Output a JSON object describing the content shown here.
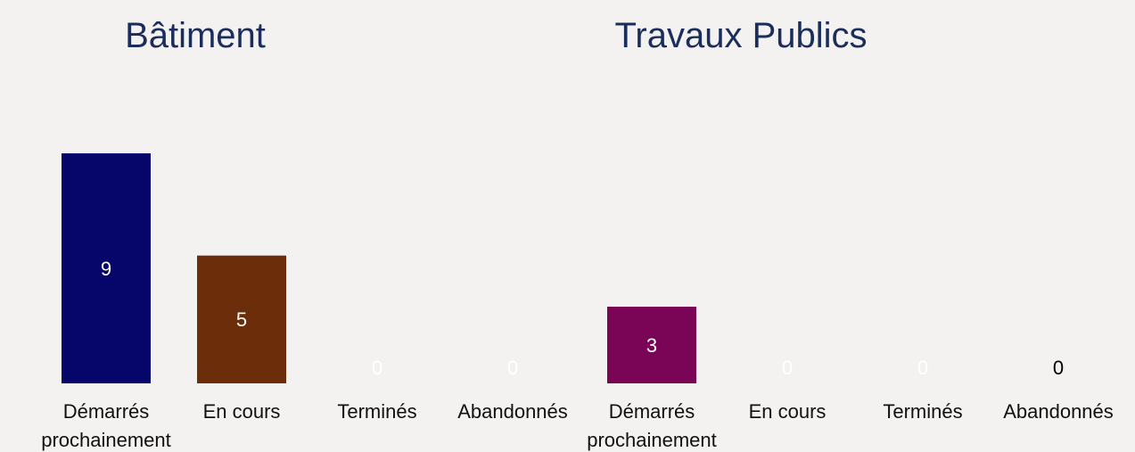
{
  "chart_data": [
    {
      "type": "bar",
      "title": "Bâtiment",
      "categories": [
        "Démarrés prochainement",
        "En cours",
        "Terminés",
        "Abandonnés"
      ],
      "values": [
        9,
        5,
        0,
        0
      ],
      "colors": [
        "#05056a",
        "#6b2d0a",
        "#2f6b2f",
        "#8a8a8a"
      ],
      "label_colors": [
        "#ffffff",
        "#ffffff",
        "#ffffff",
        "#ffffff"
      ]
    },
    {
      "type": "bar",
      "title": "Travaux Publics",
      "categories": [
        "Démarrés prochainement",
        "En cours",
        "Terminés",
        "Abandonnés"
      ],
      "values": [
        3,
        0,
        0,
        0
      ],
      "colors": [
        "#7a0557",
        "#1f4e79",
        "#2f6b2f",
        "#8a8a8a"
      ],
      "label_colors": [
        "#ffffff",
        "#ffffff",
        "#ffffff",
        "#000000"
      ]
    }
  ]
}
